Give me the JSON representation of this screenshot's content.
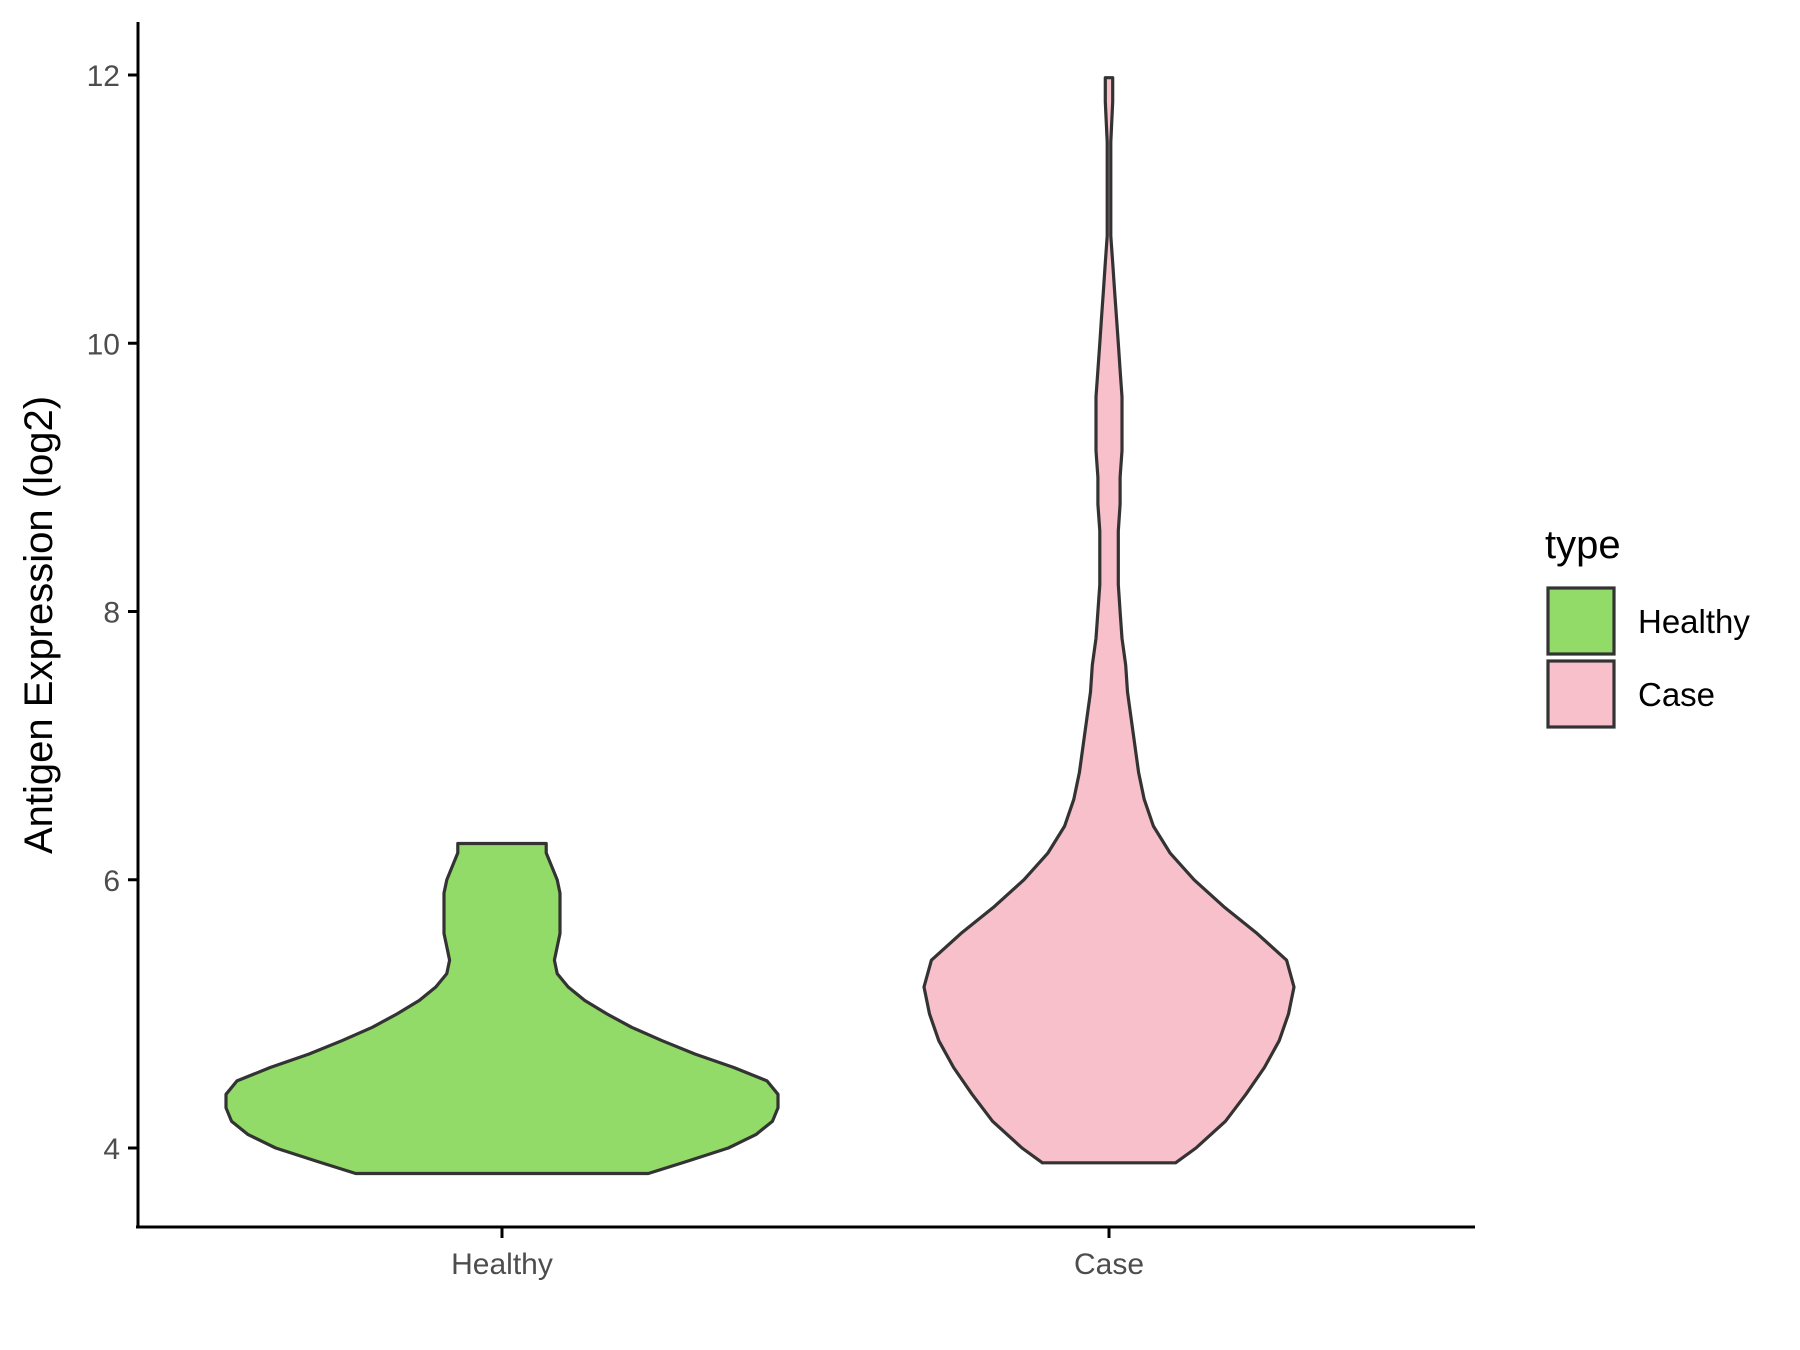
{
  "chart_data": {
    "type": "violin",
    "title": "",
    "xlabel": "",
    "ylabel": "Antigen Expression (log2)",
    "categories": [
      "Healthy",
      "Case"
    ],
    "ylim": [
      3.4,
      12.4
    ],
    "yticks": [
      4,
      6,
      8,
      10,
      12
    ],
    "grid": false,
    "legend": {
      "title": "type",
      "position": "right",
      "items": [
        {
          "label": "Healthy",
          "color": "#93db69"
        },
        {
          "label": "Case",
          "color": "#f8c0cb"
        }
      ]
    },
    "series": [
      {
        "name": "Healthy",
        "color": "#93db69",
        "min": 3.81,
        "max": 6.27,
        "density": [
          [
            3.81,
            0.53
          ],
          [
            3.9,
            0.67
          ],
          [
            4.0,
            0.82
          ],
          [
            4.1,
            0.92
          ],
          [
            4.2,
            0.98
          ],
          [
            4.3,
            1.0
          ],
          [
            4.4,
            1.0
          ],
          [
            4.5,
            0.96
          ],
          [
            4.6,
            0.84
          ],
          [
            4.7,
            0.7
          ],
          [
            4.8,
            0.58
          ],
          [
            4.9,
            0.47
          ],
          [
            5.0,
            0.38
          ],
          [
            5.1,
            0.3
          ],
          [
            5.2,
            0.24
          ],
          [
            5.3,
            0.2
          ],
          [
            5.4,
            0.19
          ],
          [
            5.5,
            0.2
          ],
          [
            5.6,
            0.21
          ],
          [
            5.7,
            0.21
          ],
          [
            5.8,
            0.21
          ],
          [
            5.9,
            0.21
          ],
          [
            6.0,
            0.2
          ],
          [
            6.1,
            0.18
          ],
          [
            6.2,
            0.16
          ],
          [
            6.27,
            0.16
          ]
        ]
      },
      {
        "name": "Case",
        "color": "#f8c0cb",
        "min": 3.89,
        "max": 11.98,
        "density": [
          [
            3.89,
            0.36
          ],
          [
            4.0,
            0.47
          ],
          [
            4.2,
            0.63
          ],
          [
            4.4,
            0.74
          ],
          [
            4.6,
            0.84
          ],
          [
            4.8,
            0.92
          ],
          [
            5.0,
            0.97
          ],
          [
            5.2,
            1.0
          ],
          [
            5.4,
            0.96
          ],
          [
            5.6,
            0.8
          ],
          [
            5.8,
            0.62
          ],
          [
            6.0,
            0.46
          ],
          [
            6.2,
            0.33
          ],
          [
            6.4,
            0.24
          ],
          [
            6.6,
            0.19
          ],
          [
            6.8,
            0.16
          ],
          [
            7.0,
            0.14
          ],
          [
            7.2,
            0.12
          ],
          [
            7.4,
            0.1
          ],
          [
            7.6,
            0.09
          ],
          [
            7.8,
            0.07
          ],
          [
            8.0,
            0.06
          ],
          [
            8.2,
            0.05
          ],
          [
            8.4,
            0.05
          ],
          [
            8.6,
            0.05
          ],
          [
            8.8,
            0.06
          ],
          [
            9.0,
            0.06
          ],
          [
            9.2,
            0.07
          ],
          [
            9.4,
            0.07
          ],
          [
            9.6,
            0.07
          ],
          [
            9.8,
            0.06
          ],
          [
            10.0,
            0.05
          ],
          [
            10.2,
            0.04
          ],
          [
            10.4,
            0.03
          ],
          [
            10.6,
            0.02
          ],
          [
            10.8,
            0.01
          ],
          [
            11.0,
            0.01
          ],
          [
            11.2,
            0.01
          ],
          [
            11.5,
            0.01
          ],
          [
            11.8,
            0.02
          ],
          [
            11.98,
            0.02
          ]
        ]
      }
    ]
  }
}
